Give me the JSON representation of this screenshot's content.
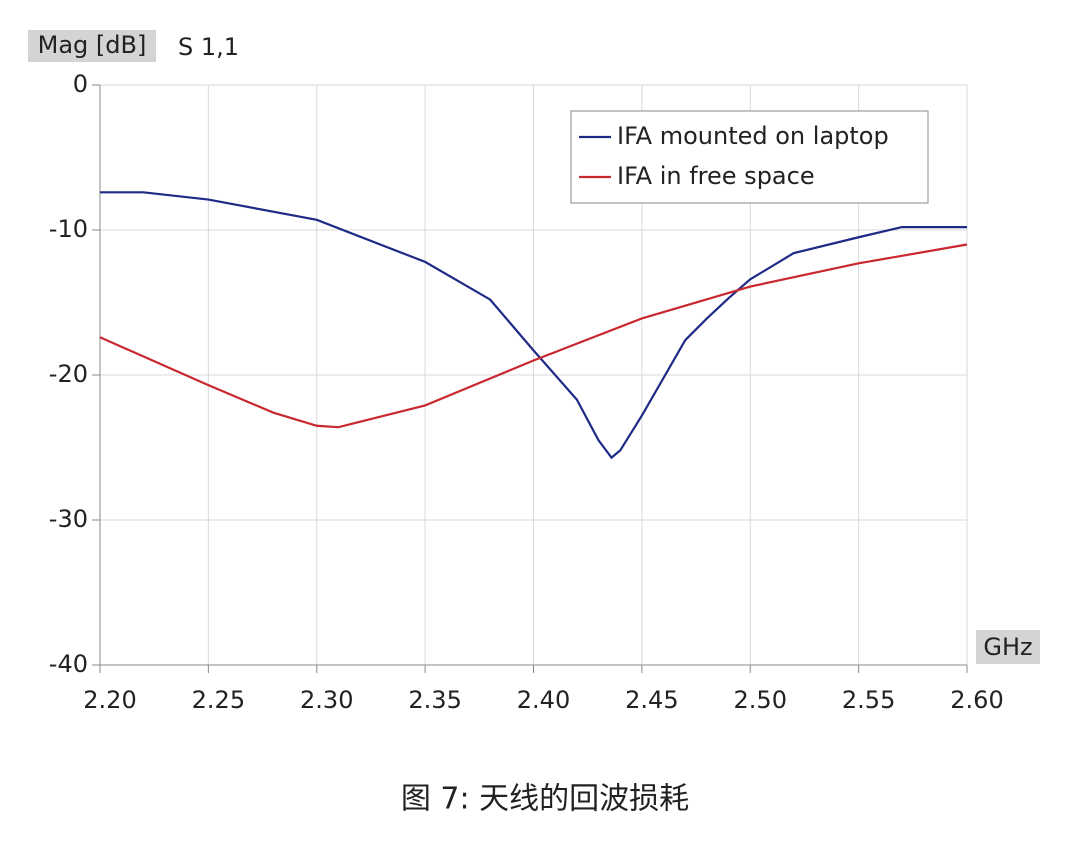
{
  "chart_data": {
    "type": "line",
    "y_label": "Mag [dB]",
    "subtitle": "S 1,1",
    "x_label": "GHz",
    "caption": "图 7: 天线的回波损耗",
    "series": [
      {
        "name": "IFA mounted on laptop",
        "color": "#1f2a86",
        "x": [
          2.2,
          2.22,
          2.25,
          2.3,
          2.35,
          2.38,
          2.4,
          2.42,
          2.43,
          2.436,
          2.44,
          2.45,
          2.47,
          2.48,
          2.49,
          2.5,
          2.52,
          2.55,
          2.57,
          2.6
        ],
        "values": [
          -7.4,
          -7.4,
          -7.9,
          -9.3,
          -12.2,
          -14.8,
          -18.3,
          -21.7,
          -24.5,
          -25.7,
          -25.2,
          -22.8,
          -17.6,
          -16.1,
          -14.7,
          -13.4,
          -11.6,
          -10.5,
          -9.8,
          -9.8
        ]
      },
      {
        "name": "IFA in free space",
        "color": "#c8282e",
        "x": [
          2.2,
          2.25,
          2.28,
          2.3,
          2.31,
          2.35,
          2.4,
          2.45,
          2.5,
          2.55,
          2.6
        ],
        "values": [
          -17.4,
          -20.7,
          -22.6,
          -23.5,
          -23.6,
          -22.1,
          -19.0,
          -16.1,
          -13.9,
          -12.3,
          -11.0
        ]
      }
    ],
    "xlim": [
      2.2,
      2.6
    ],
    "xticks": [
      {
        "value": 2.2,
        "label": "2.20"
      },
      {
        "value": 2.25,
        "label": "2.25"
      },
      {
        "value": 2.3,
        "label": "2.30"
      },
      {
        "value": 2.35,
        "label": "2.35"
      },
      {
        "value": 2.4,
        "label": "2.40"
      },
      {
        "value": 2.45,
        "label": "2.45"
      },
      {
        "value": 2.5,
        "label": "2.50"
      },
      {
        "value": 2.55,
        "label": "2.55"
      },
      {
        "value": 2.6,
        "label": "2.60"
      }
    ],
    "ylim": [
      -40,
      0
    ],
    "yticks": [
      0,
      -10,
      -20,
      -30,
      -40
    ],
    "grid": true,
    "legend": "top-right"
  }
}
